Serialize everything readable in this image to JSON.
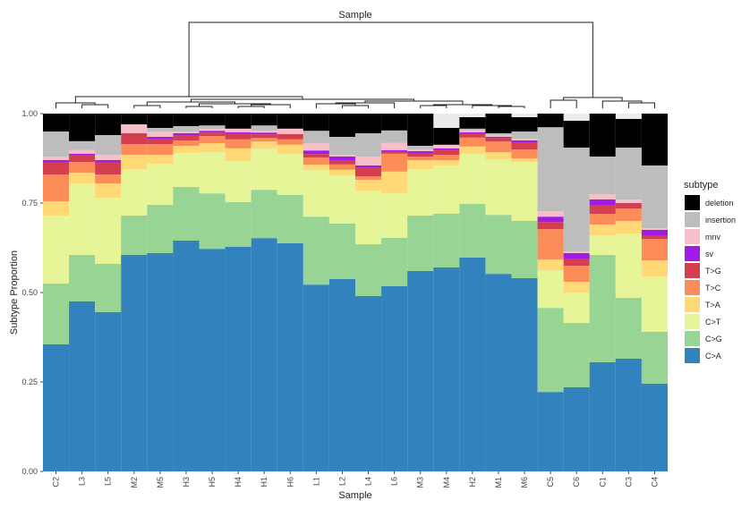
{
  "chart_data": {
    "type": "bar",
    "stacked": true,
    "dendrogram_title": "Sample",
    "xlabel": "Sample",
    "ylabel": "Subtype Proportion",
    "ylim": [
      0,
      1
    ],
    "yticks": [
      "0.00",
      "0.25",
      "0.50",
      "0.75",
      "1.00"
    ],
    "ytick_values": [
      0,
      0.25,
      0.5,
      0.75,
      1.0
    ],
    "legend_title": "subtype",
    "legend_position": "right",
    "categories": [
      "C2",
      "L3",
      "L5",
      "M2",
      "M5",
      "H3",
      "H5",
      "H4",
      "H1",
      "H6",
      "L1",
      "L2",
      "L4",
      "L6",
      "M3",
      "M4",
      "H2",
      "M1",
      "M6",
      "C5",
      "C6",
      "C1",
      "C3",
      "C4"
    ],
    "series_order_bottom_to_top": [
      "C>A",
      "C>G",
      "C>T",
      "T>A",
      "T>C",
      "T>G",
      "sv",
      "mnv",
      "insertion",
      "deletion"
    ],
    "legend_order": [
      "deletion",
      "insertion",
      "mnv",
      "sv",
      "T>G",
      "T>C",
      "T>A",
      "C>T",
      "C>G",
      "C>A"
    ],
    "colors": {
      "C>A": "#3182bd",
      "C>G": "#98d594",
      "C>T": "#e5f598",
      "T>A": "#fed976",
      "T>C": "#fc8d59",
      "T>G": "#d53e4f",
      "sv": "#9e1ce6",
      "mnv": "#f9bfc8",
      "insertion": "#bdbdbd",
      "deletion": "#000000"
    },
    "series": [
      {
        "name": "C>A",
        "values": [
          0.355,
          0.475,
          0.445,
          0.605,
          0.61,
          0.645,
          0.622,
          0.628,
          0.652,
          0.638,
          0.522,
          0.538,
          0.49,
          0.518,
          0.56,
          0.57,
          0.598,
          0.552,
          0.54,
          0.222,
          0.235,
          0.305,
          0.315,
          0.245
        ]
      },
      {
        "name": "C>G",
        "values": [
          0.17,
          0.13,
          0.135,
          0.11,
          0.135,
          0.15,
          0.155,
          0.125,
          0.135,
          0.135,
          0.19,
          0.155,
          0.145,
          0.135,
          0.155,
          0.15,
          0.15,
          0.165,
          0.16,
          0.235,
          0.18,
          0.3,
          0.17,
          0.145
        ]
      },
      {
        "name": "C>T",
        "values": [
          0.19,
          0.2,
          0.185,
          0.13,
          0.115,
          0.095,
          0.115,
          0.115,
          0.115,
          0.115,
          0.13,
          0.135,
          0.15,
          0.125,
          0.13,
          0.135,
          0.14,
          0.155,
          0.165,
          0.105,
          0.085,
          0.055,
          0.18,
          0.155
        ]
      },
      {
        "name": "T>A",
        "values": [
          0.04,
          0.03,
          0.04,
          0.04,
          0.025,
          0.02,
          0.025,
          0.035,
          0.02,
          0.025,
          0.015,
          0.015,
          0.03,
          0.06,
          0.025,
          0.015,
          0.02,
          0.02,
          0.01,
          0.03,
          0.03,
          0.03,
          0.035,
          0.045
        ]
      },
      {
        "name": "T>C",
        "values": [
          0.075,
          0.03,
          0.025,
          0.03,
          0.03,
          0.015,
          0.02,
          0.025,
          0.01,
          0.015,
          0.02,
          0.015,
          0.01,
          0.05,
          0.01,
          0.015,
          0.025,
          0.03,
          0.025,
          0.085,
          0.045,
          0.03,
          0.035,
          0.06
        ]
      },
      {
        "name": "T>G",
        "values": [
          0.035,
          0.02,
          0.035,
          0.03,
          0.015,
          0.015,
          0.01,
          0.015,
          0.01,
          0.015,
          0.01,
          0.012,
          0.025,
          0.005,
          0.01,
          0.015,
          0.01,
          0.01,
          0.02,
          0.02,
          0.02,
          0.025,
          0.015,
          0.01
        ]
      },
      {
        "name": "sv",
        "values": [
          0.005,
          0.003,
          0.005,
          0.0,
          0.005,
          0.005,
          0.005,
          0.005,
          0.005,
          0.0,
          0.01,
          0.01,
          0.005,
          0.005,
          0.005,
          0.003,
          0.005,
          0.003,
          0.005,
          0.015,
          0.015,
          0.015,
          0.0,
          0.015
        ]
      },
      {
        "name": "mnv",
        "values": [
          0.01,
          0.01,
          0.015,
          0.025,
          0.015,
          0.005,
          0.005,
          0.01,
          0.005,
          0.015,
          0.02,
          0.005,
          0.025,
          0.02,
          0.005,
          0.01,
          0.005,
          0.005,
          0.005,
          0.015,
          0.005,
          0.015,
          0.01,
          0.005
        ]
      },
      {
        "name": "insertion",
        "values": [
          0.07,
          0.025,
          0.055,
          0.0,
          0.01,
          0.015,
          0.01,
          0.0,
          0.015,
          0.0,
          0.035,
          0.05,
          0.065,
          0.035,
          0.01,
          0.0,
          0.005,
          0.005,
          0.02,
          0.235,
          0.29,
          0.105,
          0.145,
          0.175
        ]
      },
      {
        "name": "deletion",
        "values": [
          0.05,
          0.077,
          0.06,
          0.03,
          0.04,
          0.035,
          0.033,
          0.042,
          0.033,
          0.042,
          0.048,
          0.065,
          0.055,
          0.047,
          0.09,
          0.047,
          0.032,
          0.055,
          0.04,
          0.063,
          0.075,
          0.12,
          0.08,
          0.145
        ]
      }
    ]
  }
}
